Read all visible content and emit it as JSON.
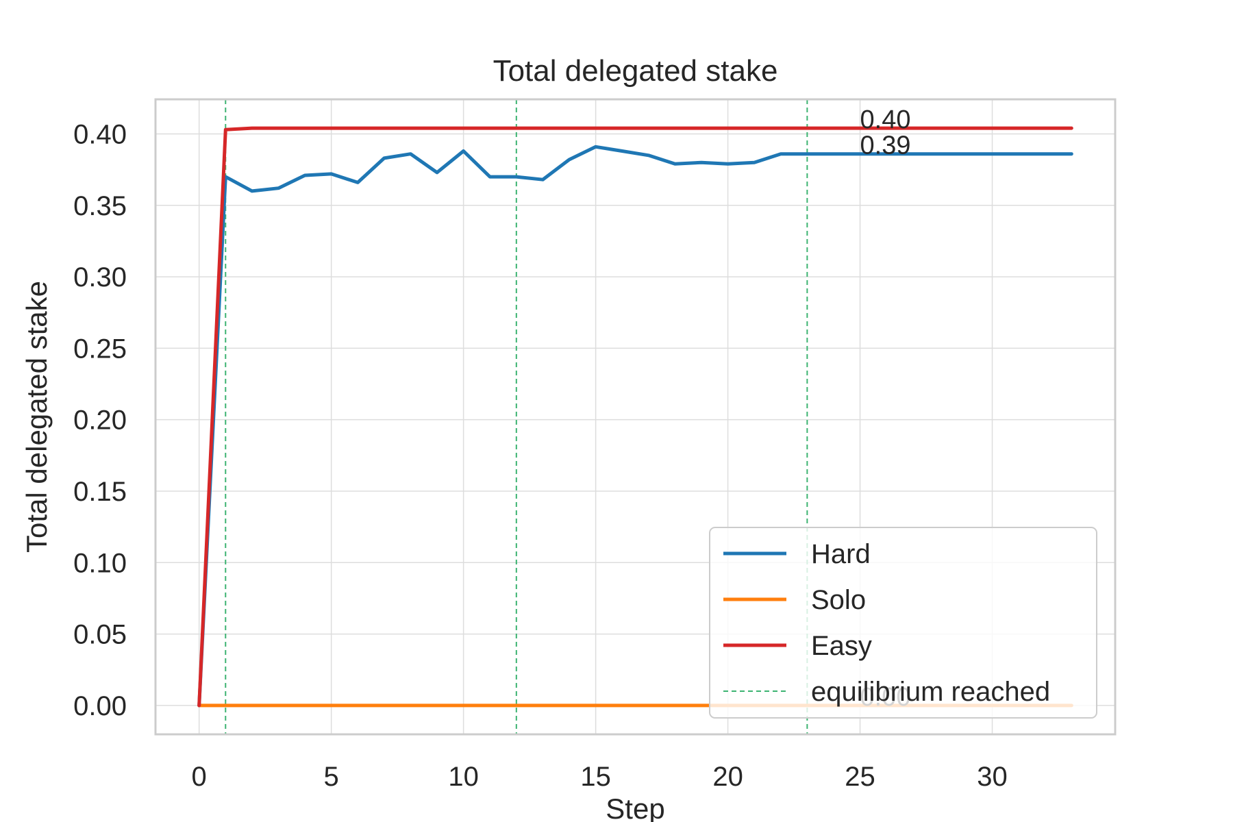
{
  "chart_data": {
    "type": "line",
    "title": "Total delegated stake",
    "xlabel": "Step",
    "ylabel": "Total delegated stake",
    "xlim": [
      -1.65,
      34.65
    ],
    "ylim": [
      -0.0202,
      0.4242
    ],
    "xticks": [
      0,
      5,
      10,
      15,
      20,
      25,
      30
    ],
    "yticks": [
      0.0,
      0.05,
      0.1,
      0.15,
      0.2,
      0.25,
      0.3,
      0.35,
      0.4
    ],
    "xtick_labels": [
      "0",
      "5",
      "10",
      "15",
      "20",
      "25",
      "30"
    ],
    "ytick_labels": [
      "0.00",
      "0.05",
      "0.10",
      "0.15",
      "0.20",
      "0.25",
      "0.30",
      "0.35",
      "0.40"
    ],
    "grid": true,
    "legend_position": "lower-right",
    "series": [
      {
        "name": "Hard",
        "color": "#1f77b4",
        "x": [
          0,
          1,
          2,
          3,
          4,
          5,
          6,
          7,
          8,
          9,
          10,
          11,
          12,
          13,
          14,
          15,
          16,
          17,
          18,
          19,
          20,
          21,
          22,
          23,
          24,
          25,
          26,
          27,
          28,
          29,
          30,
          31,
          32,
          33
        ],
        "values": [
          0,
          0.37,
          0.36,
          0.362,
          0.371,
          0.372,
          0.366,
          0.383,
          0.386,
          0.373,
          0.388,
          0.37,
          0.37,
          0.368,
          0.382,
          0.391,
          0.388,
          0.385,
          0.379,
          0.38,
          0.379,
          0.38,
          0.386,
          0.386,
          0.386,
          0.386,
          0.386,
          0.386,
          0.386,
          0.386,
          0.386,
          0.386,
          0.386,
          0.386
        ]
      },
      {
        "name": "Solo",
        "color": "#ff7f0e",
        "x": [
          0,
          1,
          2,
          3,
          4,
          5,
          6,
          7,
          8,
          9,
          10,
          11,
          12,
          13,
          14,
          15,
          16,
          17,
          18,
          19,
          20,
          21,
          22,
          23,
          24,
          25,
          26,
          27,
          28,
          29,
          30,
          31,
          32,
          33
        ],
        "values": [
          0,
          0,
          0,
          0,
          0,
          0,
          0,
          0,
          0,
          0,
          0,
          0,
          0,
          0,
          0,
          0,
          0,
          0,
          0,
          0,
          0,
          0,
          0,
          0,
          0,
          0,
          0,
          0,
          0,
          0,
          0,
          0,
          0,
          0
        ]
      },
      {
        "name": "Easy",
        "color": "#d62728",
        "x": [
          0,
          1,
          2,
          3,
          4,
          5,
          6,
          7,
          8,
          9,
          10,
          11,
          12,
          13,
          14,
          15,
          16,
          17,
          18,
          19,
          20,
          21,
          22,
          23,
          24,
          25,
          26,
          27,
          28,
          29,
          30,
          31,
          32,
          33
        ],
        "values": [
          0,
          0.403,
          0.404,
          0.404,
          0.404,
          0.404,
          0.404,
          0.404,
          0.404,
          0.404,
          0.404,
          0.404,
          0.404,
          0.404,
          0.404,
          0.404,
          0.404,
          0.404,
          0.404,
          0.404,
          0.404,
          0.404,
          0.404,
          0.404,
          0.404,
          0.404,
          0.404,
          0.404,
          0.404,
          0.404,
          0.404,
          0.404,
          0.404,
          0.404
        ]
      }
    ],
    "equilibrium": {
      "name": "equilibrium reached",
      "color": "#3cb371",
      "x": [
        1,
        12,
        23
      ]
    },
    "annotations": [
      {
        "text": "0.40",
        "x": 25,
        "y": 0.404
      },
      {
        "text": "0.39",
        "x": 25,
        "y": 0.386
      },
      {
        "text": "0.00",
        "x": 25,
        "y": 0.0
      }
    ]
  }
}
